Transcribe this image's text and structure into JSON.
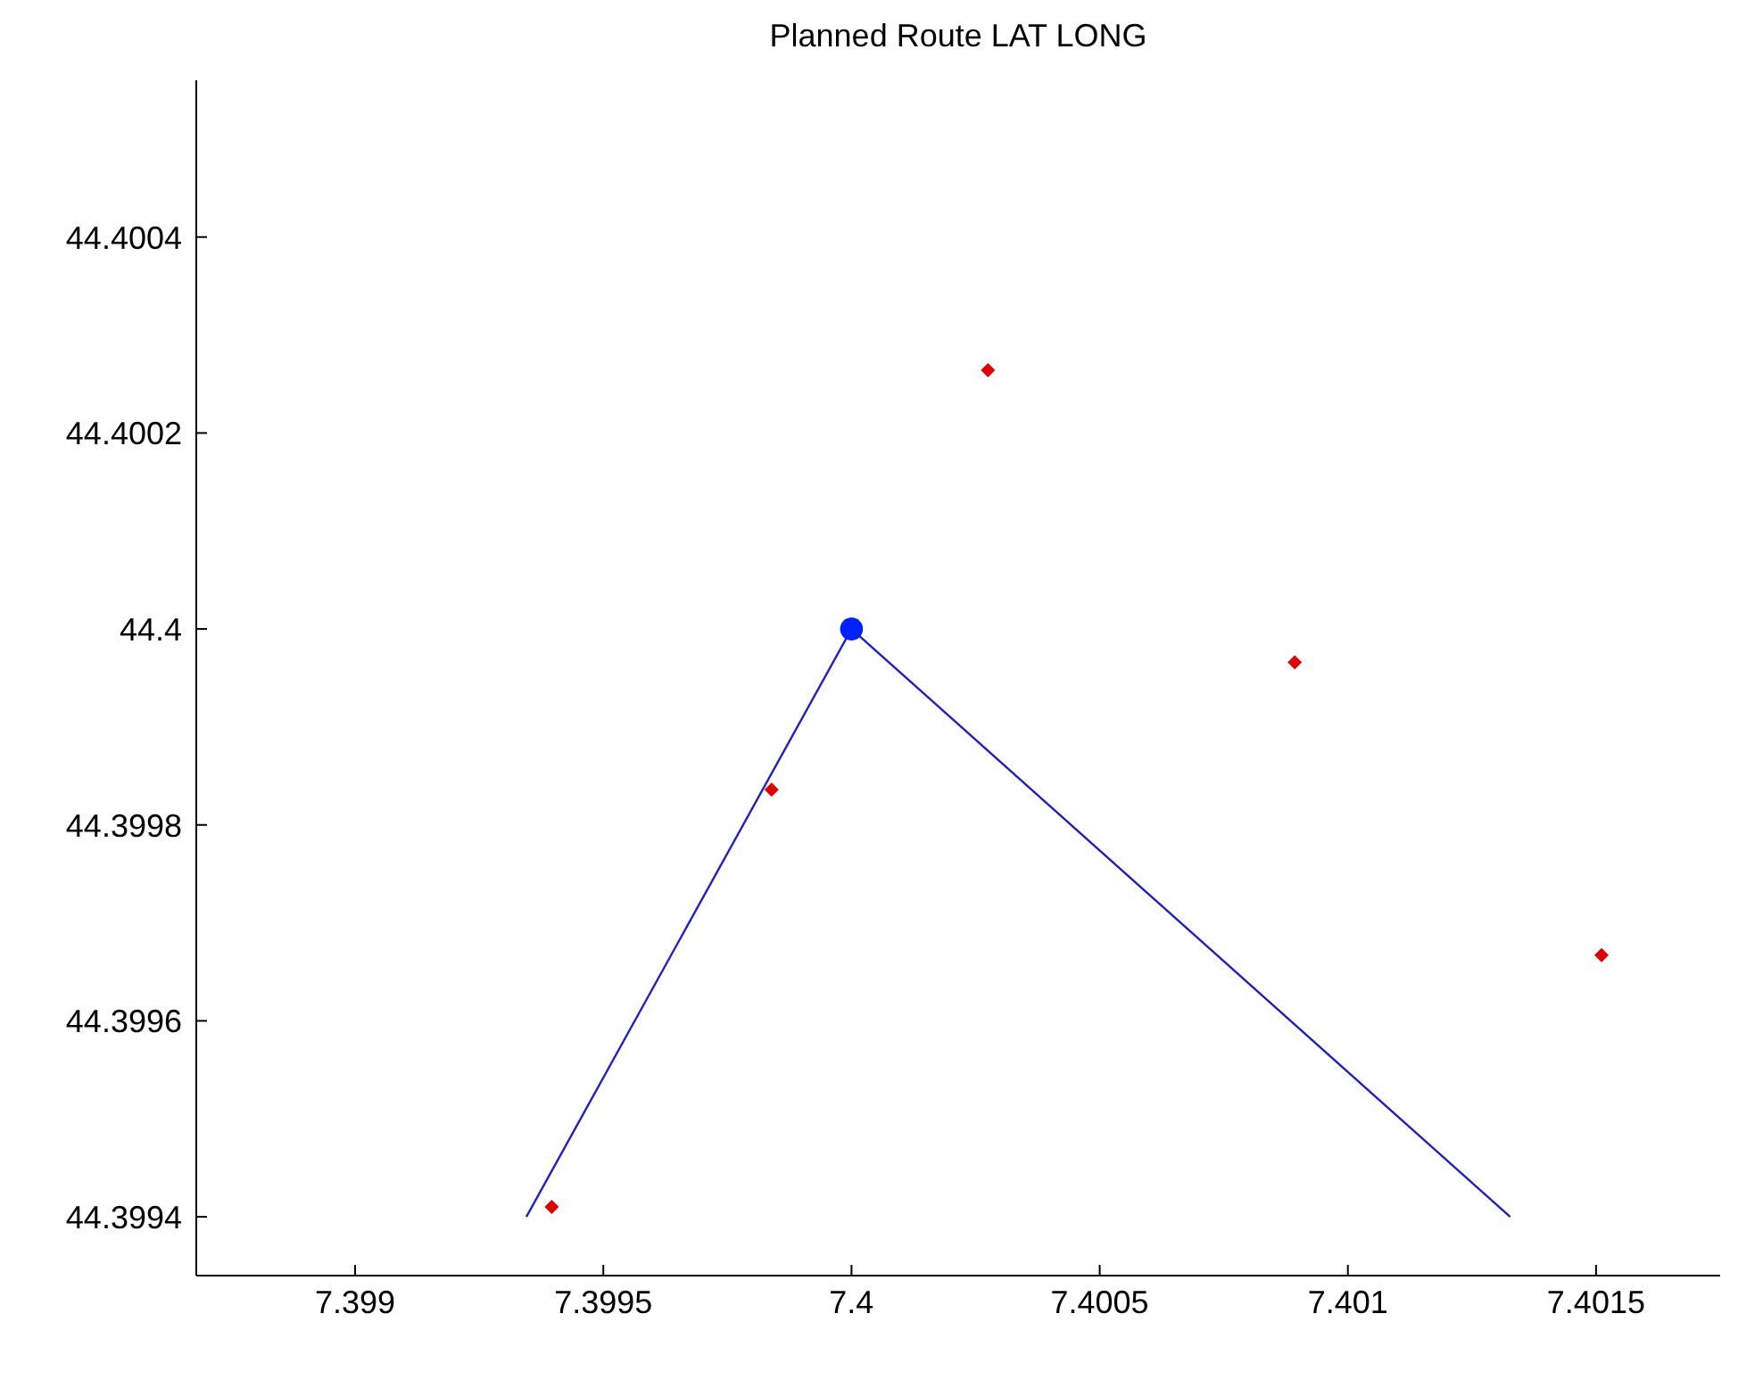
{
  "chart_data": {
    "type": "scatter",
    "title": "Planned Route LAT LONG",
    "xlim": [
      7.39868,
      7.40175
    ],
    "xticks": [
      7.399,
      7.3995,
      7.4,
      7.4005,
      7.401,
      7.4015
    ],
    "ylim": [
      44.39934,
      44.40056
    ],
    "yticks": [
      44.3994,
      44.3996,
      44.3998,
      44.4,
      44.4002,
      44.4004
    ],
    "series": [
      {
        "type": "line",
        "color": "#2020c0",
        "marker": "none",
        "x": [
          7.399345,
          7.4,
          7.401327
        ],
        "values": [
          44.3994,
          44.4,
          44.3994
        ]
      },
      {
        "type": "scatter",
        "color": "#e00000",
        "marker": "diamond",
        "x": [
          7.399396,
          7.399839,
          7.400275,
          7.400893,
          7.401511
        ],
        "values": [
          44.39941,
          44.399836,
          44.400264,
          44.399966,
          44.399667
        ]
      },
      {
        "type": "scatter",
        "color": "#0020ff",
        "marker": "circle",
        "x": [
          7.4
        ],
        "values": [
          44.4
        ]
      }
    ]
  }
}
